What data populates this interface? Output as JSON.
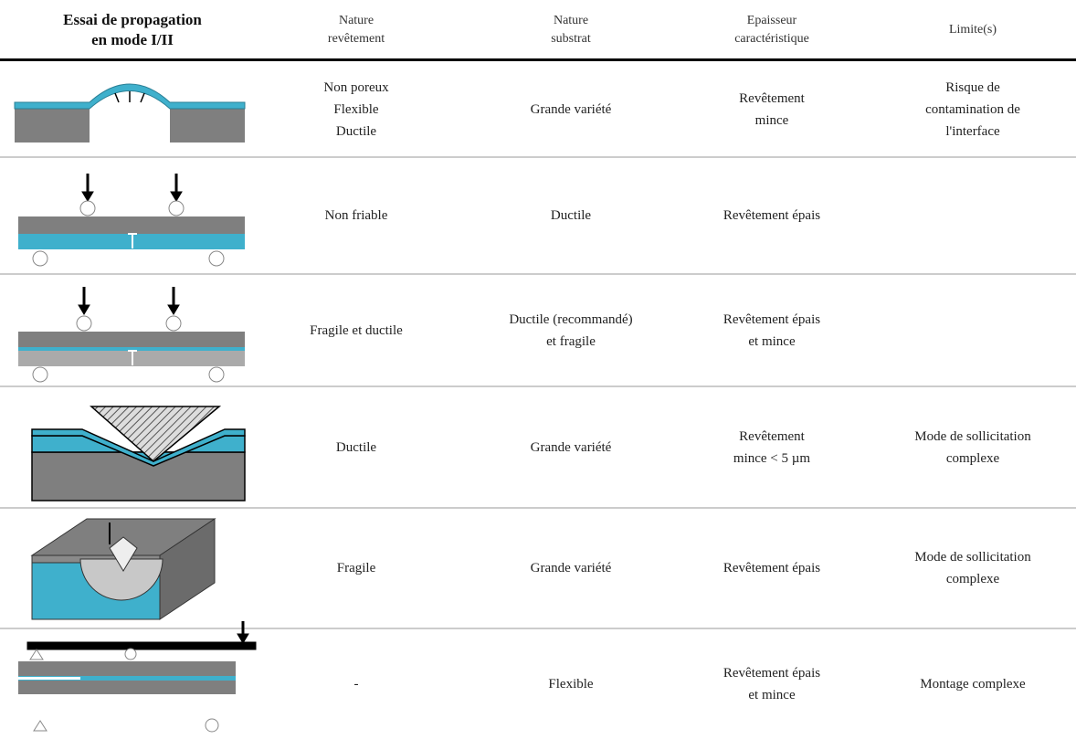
{
  "header": {
    "test": [
      "Essai de propagation",
      "en mode I/II"
    ],
    "revetement": [
      "Nature",
      "revêtement"
    ],
    "substrat": [
      "Nature",
      "substrat"
    ],
    "epaisseur": [
      "Epaisseur",
      "caractéristique"
    ],
    "limites": [
      "Limite(s)"
    ]
  },
  "table": {
    "rows": [
      {
        "revetement": [
          "Non poreux",
          "Flexible",
          "Ductile"
        ],
        "substrat": [
          "Grande variété"
        ],
        "epaisseur": [
          "Revêtement",
          "mince"
        ],
        "limites": [
          "Risque de",
          "contamination de",
          "l'interface"
        ]
      },
      {
        "revetement": [
          "Non friable"
        ],
        "substrat": [
          "Ductile"
        ],
        "epaisseur": [
          "Revêtement épais"
        ]
      },
      {
        "revetement": [
          "Fragile et ductile"
        ],
        "substrat": [
          "Ductile (recommandé)",
          "et fragile"
        ],
        "epaisseur": [
          "Revêtement épais",
          "et mince"
        ]
      },
      {
        "revetement": [
          "Ductile"
        ],
        "substrat": [
          "Grande variété"
        ],
        "epaisseur": [
          "Revêtement",
          "mince < 5 µm"
        ],
        "limites": [
          "Mode de sollicitation",
          "complexe"
        ]
      },
      {
        "revetement": [
          "Fragile"
        ],
        "substrat": [
          "Grande variété"
        ],
        "epaisseur": [
          "Revêtement épais"
        ],
        "limites": [
          "Mode de sollicitation",
          "complexe"
        ]
      },
      {
        "revetement": [
          "-"
        ],
        "substrat": [
          "Flexible"
        ],
        "epaisseur": [
          "Revêtement épais",
          "et mince"
        ],
        "limites": [
          "Montage complexe"
        ]
      }
    ]
  }
}
